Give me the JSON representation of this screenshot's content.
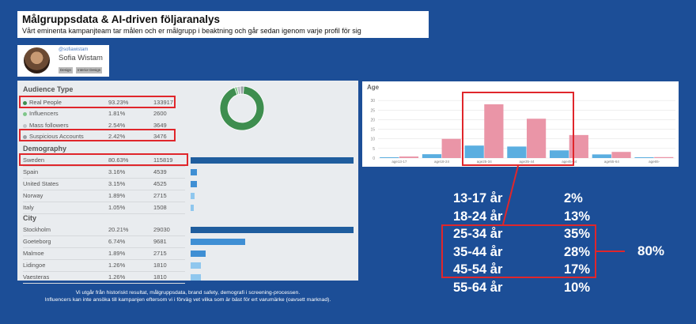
{
  "header": {
    "title": "Målgruppsdata & AI-driven följaranalys",
    "subtitle": "Vårt eminenta kampanjteam tar målen och er målgrupp i beaktning och går sedan igenom varje profil för sig"
  },
  "profile": {
    "handle": "@sofiawistam",
    "name": "Sofia Wistam",
    "tags": [
      "Design",
      "Interior Design"
    ]
  },
  "audience": {
    "title": "Audience Type",
    "rows": [
      {
        "label": "Real People",
        "pct": "93.23%",
        "count": "133917",
        "color": "#3e8e4f"
      },
      {
        "label": "Influencers",
        "pct": "1.81%",
        "count": "2600",
        "color": "#7fc68a"
      },
      {
        "label": "Mass followers",
        "pct": "2.54%",
        "count": "3649",
        "color": "#bfc4c8"
      },
      {
        "label": "Suspicious Accounts",
        "pct": "2.42%",
        "count": "3476",
        "color": "#9aa0a6"
      }
    ],
    "donut": [
      93.23,
      1.81,
      2.54,
      2.42
    ]
  },
  "demography": {
    "title": "Demography",
    "rows": [
      {
        "label": "Sweden",
        "pct": "80.63%",
        "count": "115819",
        "share": 80.63
      },
      {
        "label": "Spain",
        "pct": "3.16%",
        "count": "4539",
        "share": 3.16
      },
      {
        "label": "United States",
        "pct": "3.15%",
        "count": "4525",
        "share": 3.15
      },
      {
        "label": "Norway",
        "pct": "1.89%",
        "count": "2715",
        "share": 1.89
      },
      {
        "label": "Italy",
        "pct": "1.05%",
        "count": "1508",
        "share": 1.05
      }
    ]
  },
  "city": {
    "title": "City",
    "rows": [
      {
        "label": "Stockholm",
        "pct": "20.21%",
        "count": "29030",
        "share": 20.21
      },
      {
        "label": "Goeteborg",
        "pct": "6.74%",
        "count": "9681",
        "share": 6.74
      },
      {
        "label": "Malmoe",
        "pct": "1.89%",
        "count": "2715",
        "share": 1.89
      },
      {
        "label": "Lidingoe",
        "pct": "1.26%",
        "count": "1810",
        "share": 1.26
      },
      {
        "label": "Vaesteras",
        "pct": "1.26%",
        "count": "1810",
        "share": 1.26
      }
    ]
  },
  "footnote": {
    "line1": "Vi utgår från historiskt resultat, målgruppsdata, brand safety, demografi i screening-processen.",
    "line2": "Influencers kan inte ansöka till kampanjen eftersom vi i förväg vet vilka som är bäst för ert varumärke (oavsett marknad)."
  },
  "chart_data": {
    "type": "bar",
    "title": "Age",
    "categories": [
      "age13-17",
      "age18-24",
      "age25-34",
      "age35-44",
      "age45-54",
      "age55-64",
      "age65-"
    ],
    "ylim": [
      0,
      35
    ],
    "yticks": [
      "0",
      "5",
      "10",
      "15",
      "20",
      "25",
      "30"
    ],
    "series": [
      {
        "values": [
          0.4,
          2,
          6.5,
          6,
          4,
          1.9,
          0.4
        ],
        "color": "#5aaee0"
      },
      {
        "values": [
          0.8,
          10,
          28,
          20.5,
          12,
          3.2,
          0.5
        ],
        "color": "#ea95a7"
      }
    ]
  },
  "age_table": [
    {
      "range": "13-17 år",
      "pct": "2%"
    },
    {
      "range": "18-24 år",
      "pct": "13%"
    },
    {
      "range": "25-34 år",
      "pct": "35%"
    },
    {
      "range": "35-44 år",
      "pct": "28%"
    },
    {
      "range": "45-54 år",
      "pct": "17%"
    },
    {
      "range": "55-64 år",
      "pct": "10%"
    }
  ],
  "age_total": "80%",
  "colors": {
    "accent": "#e0262b",
    "background": "#1c4e97",
    "bar_dark": "#1f5d9e",
    "bar_mid": "#3f8fd4",
    "bar_light": "#8fc7ee"
  }
}
